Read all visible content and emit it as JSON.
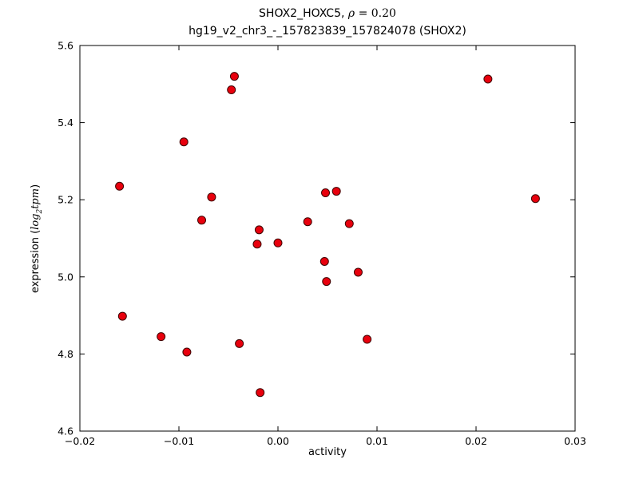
{
  "title": {
    "line1_prefix": "SHOX2_HOXC5, ",
    "rho": "ρ",
    "line1_suffix": " = 0.20",
    "line2": "hg19_v2_chr3_-_157823839_157824078 (SHOX2)"
  },
  "axes": {
    "x_label": "activity",
    "y_label_prefix": "expression (",
    "y_label_log": "log",
    "y_label_sub": "2",
    "y_label_var": "tpm",
    "y_label_suffix": ")"
  },
  "chart_data": {
    "type": "scatter",
    "title": "SHOX2_HOXC5, ρ = 0.20",
    "subtitle": "hg19_v2_chr3_-_157823839_157824078 (SHOX2)",
    "xlabel": "activity",
    "ylabel": "expression (log2 tpm)",
    "xlim": [
      -0.02,
      0.03
    ],
    "ylim": [
      4.6,
      5.6
    ],
    "grid": false,
    "legend": false,
    "x_tick_values": [
      -0.02,
      -0.01,
      0.0,
      0.01,
      0.02,
      0.03
    ],
    "x_tick_labels": [
      "−0.02",
      "−0.01",
      "0.00",
      "0.01",
      "0.02",
      "0.03"
    ],
    "y_tick_values": [
      4.6,
      4.8,
      5.0,
      5.2,
      5.4,
      5.6
    ],
    "y_tick_labels": [
      "4.6",
      "4.8",
      "5.0",
      "5.2",
      "5.4",
      "5.6"
    ],
    "marker": {
      "shape": "circle",
      "fill": "#e8000d",
      "edge": "#3d0000",
      "radius": 5
    },
    "points": [
      [
        -0.016,
        5.235
      ],
      [
        -0.0157,
        4.898
      ],
      [
        -0.0118,
        4.845
      ],
      [
        -0.0095,
        5.35
      ],
      [
        -0.0092,
        4.805
      ],
      [
        -0.0077,
        5.147
      ],
      [
        -0.0067,
        5.207
      ],
      [
        -0.0044,
        5.52
      ],
      [
        -0.0047,
        5.485
      ],
      [
        -0.0039,
        4.827
      ],
      [
        -0.0019,
        5.122
      ],
      [
        -0.0021,
        5.085
      ],
      [
        -0.0018,
        4.7
      ],
      [
        0.0,
        5.088
      ],
      [
        0.003,
        5.143
      ],
      [
        0.0048,
        5.218
      ],
      [
        0.0059,
        5.222
      ],
      [
        0.0047,
        5.04
      ],
      [
        0.0049,
        4.988
      ],
      [
        0.0072,
        5.138
      ],
      [
        0.0081,
        5.012
      ],
      [
        0.009,
        4.838
      ],
      [
        0.0212,
        5.513
      ],
      [
        0.026,
        5.203
      ]
    ]
  }
}
